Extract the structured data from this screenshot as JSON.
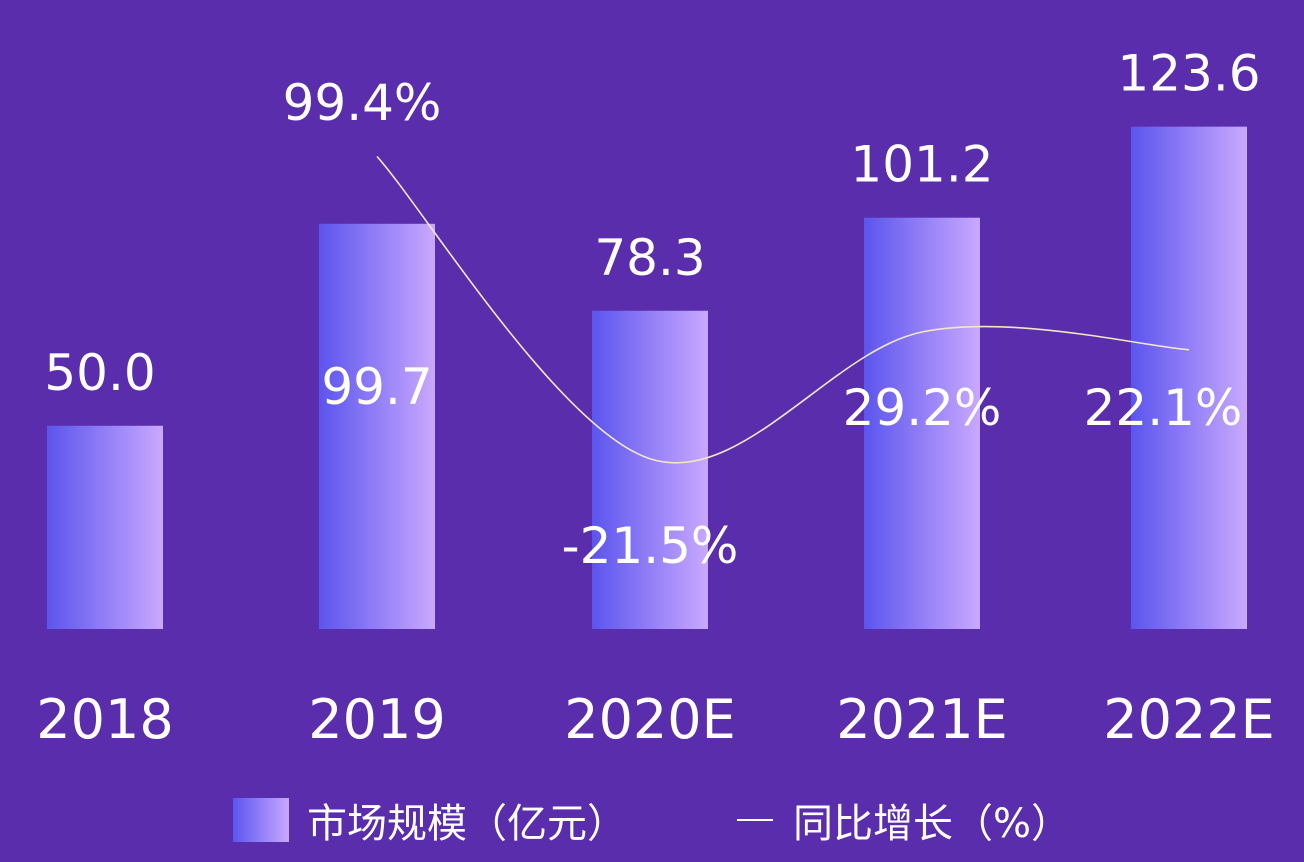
{
  "chart_data": {
    "type": "bar",
    "categories": [
      "2018",
      "2019",
      "2020E",
      "2021E",
      "2022E"
    ],
    "series": [
      {
        "name": "市场规模（亿元）",
        "kind": "bar",
        "values": [
          50.0,
          99.7,
          78.3,
          101.2,
          123.6
        ],
        "labels": [
          "50.0",
          "99.7",
          "78.3",
          "101.2",
          "123.6"
        ]
      },
      {
        "name": "同比增长（%）",
        "kind": "line",
        "values": [
          null,
          99.4,
          -21.5,
          29.2,
          22.1
        ],
        "labels": [
          "",
          "99.4%",
          "-21.5%",
          "29.2%",
          "22.1%"
        ]
      }
    ],
    "ylim": [
      0,
      140
    ],
    "y2lim": [
      -40,
      110
    ],
    "grid": false,
    "legend": "bottom",
    "colors": {
      "background": "#5a2dad",
      "bar_start": "#5b55ee",
      "bar_end": "#c9a8ff",
      "line": "#f2e6c8",
      "text": "#ffffff"
    }
  }
}
